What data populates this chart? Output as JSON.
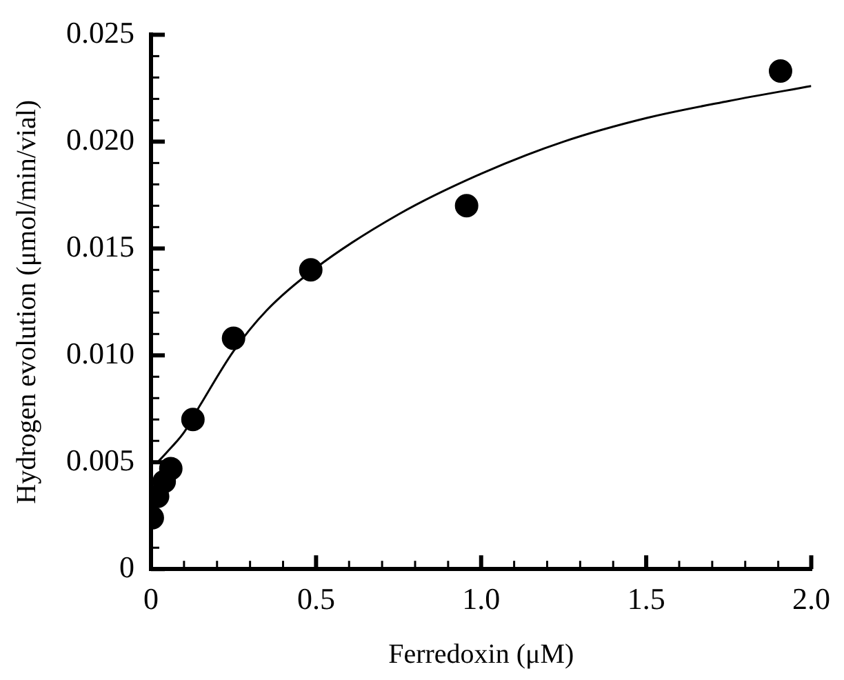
{
  "chart_data": {
    "type": "scatter",
    "xlabel": "Ferredoxin (μM)",
    "ylabel": "Hydrogen evolution (μmol/min/vial)",
    "xlim": [
      0,
      2.0
    ],
    "ylim": [
      0,
      0.025
    ],
    "xticks": [
      0,
      {
        "value": 0.1,
        "label": null
      },
      {
        "value": 0.2,
        "label": null
      },
      {
        "value": 0.3,
        "label": null
      },
      {
        "value": 0.4,
        "label": null
      },
      {
        "value": 0.5,
        "label": "0.5"
      },
      {
        "value": 0.6,
        "label": null
      },
      {
        "value": 0.7,
        "label": null
      },
      {
        "value": 0.8,
        "label": null
      },
      {
        "value": 0.9,
        "label": null
      },
      {
        "value": 1.0,
        "label": "1.0"
      },
      {
        "value": 1.1,
        "label": null
      },
      {
        "value": 1.2,
        "label": null
      },
      {
        "value": 1.3,
        "label": null
      },
      {
        "value": 1.4,
        "label": null
      },
      {
        "value": 1.5,
        "label": "1.5"
      },
      {
        "value": 1.6,
        "label": null
      },
      {
        "value": 1.7,
        "label": null
      },
      {
        "value": 1.8,
        "label": null
      },
      {
        "value": 1.9,
        "label": null
      },
      {
        "value": 2.0,
        "label": "2.0"
      }
    ],
    "yticks": [
      0,
      {
        "value": 0.001,
        "label": null
      },
      {
        "value": 0.002,
        "label": null
      },
      {
        "value": 0.003,
        "label": null
      },
      {
        "value": 0.004,
        "label": null
      },
      0.005,
      {
        "value": 0.006,
        "label": null
      },
      {
        "value": 0.007,
        "label": null
      },
      {
        "value": 0.008,
        "label": null
      },
      {
        "value": 0.009,
        "label": null
      },
      {
        "value": 0.01,
        "label": "0.010"
      },
      {
        "value": 0.011,
        "label": null
      },
      {
        "value": 0.012,
        "label": null
      },
      {
        "value": 0.013,
        "label": null
      },
      {
        "value": 0.014,
        "label": null
      },
      0.015,
      {
        "value": 0.016,
        "label": null
      },
      {
        "value": 0.017,
        "label": null
      },
      {
        "value": 0.018,
        "label": null
      },
      {
        "value": 0.019,
        "label": null
      },
      {
        "value": 0.02,
        "label": "0.020"
      },
      {
        "value": 0.021,
        "label": null
      },
      {
        "value": 0.022,
        "label": null
      },
      {
        "value": 0.023,
        "label": null
      },
      {
        "value": 0.024,
        "label": null
      },
      0.025
    ],
    "grid": false,
    "legend": false,
    "series": [
      {
        "color": "#000000",
        "marker": "circle",
        "x": [
          0.004,
          0.02,
          0.04,
          0.06,
          0.127,
          0.25,
          0.484,
          0.956,
          1.907
        ],
        "values": [
          0.0024,
          0.0034,
          0.0041,
          0.0047,
          0.007,
          0.0108,
          0.014,
          0.017,
          0.0233
        ]
      },
      {
        "type": "line",
        "color": "#000000",
        "marker": "none",
        "line_style": "solid",
        "x": [
          0.02,
          0.05,
          0.1,
          0.15,
          0.25,
          0.35,
          0.5,
          0.75,
          1.0,
          1.25,
          1.5,
          1.75,
          2.0
        ],
        "values": [
          0.005,
          0.0055,
          0.0064,
          0.0077,
          0.0102,
          0.0121,
          0.0141,
          0.0166,
          0.0185,
          0.02,
          0.0211,
          0.0219,
          0.0226
        ]
      }
    ]
  }
}
